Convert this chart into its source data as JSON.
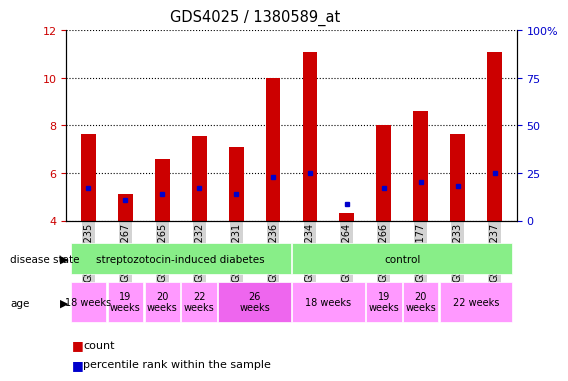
{
  "title": "GDS4025 / 1380589_at",
  "samples": [
    "GSM317235",
    "GSM317267",
    "GSM317265",
    "GSM317232",
    "GSM317231",
    "GSM317236",
    "GSM317234",
    "GSM317264",
    "GSM317266",
    "GSM317177",
    "GSM317233",
    "GSM317237"
  ],
  "bar_top": [
    7.65,
    5.1,
    6.6,
    7.55,
    7.1,
    10.0,
    11.1,
    4.3,
    8.0,
    8.6,
    7.65,
    11.1
  ],
  "bar_bottom": 4.0,
  "blue_marker": [
    5.35,
    4.85,
    5.1,
    5.35,
    5.1,
    5.85,
    6.0,
    4.7,
    5.35,
    5.6,
    5.45,
    6.0
  ],
  "ylim": [
    4.0,
    12.0
  ],
  "yticks_left": [
    4,
    6,
    8,
    10,
    12
  ],
  "yticks_right": [
    0,
    25,
    50,
    75,
    100
  ],
  "ylabel_left_color": "#cc0000",
  "ylabel_right_color": "#0000cc",
  "bar_color": "#cc0000",
  "marker_color": "#0000cc",
  "label_bg_color": "#d3d3d3",
  "ds_groups": [
    {
      "label": "streptozotocin-induced diabetes",
      "start": 0,
      "end": 5,
      "color": "#88ee88"
    },
    {
      "label": "control",
      "start": 6,
      "end": 11,
      "color": "#88ee88"
    }
  ],
  "age_groups": [
    {
      "label": "18 weeks",
      "start": 0,
      "end": 0,
      "color": "#ff99ff",
      "two_line": false
    },
    {
      "label": "19\nweeks",
      "start": 1,
      "end": 1,
      "color": "#ff99ff",
      "two_line": true
    },
    {
      "label": "20\nweeks",
      "start": 2,
      "end": 2,
      "color": "#ff99ff",
      "two_line": true
    },
    {
      "label": "22\nweeks",
      "start": 3,
      "end": 3,
      "color": "#ff99ff",
      "two_line": true
    },
    {
      "label": "26\nweeks",
      "start": 4,
      "end": 5,
      "color": "#ee66ee",
      "two_line": true
    },
    {
      "label": "18 weeks",
      "start": 6,
      "end": 7,
      "color": "#ff99ff",
      "two_line": false
    },
    {
      "label": "19\nweeks",
      "start": 8,
      "end": 8,
      "color": "#ff99ff",
      "two_line": true
    },
    {
      "label": "20\nweeks",
      "start": 9,
      "end": 9,
      "color": "#ff99ff",
      "two_line": true
    },
    {
      "label": "22 weeks",
      "start": 10,
      "end": 11,
      "color": "#ff99ff",
      "two_line": false
    }
  ]
}
